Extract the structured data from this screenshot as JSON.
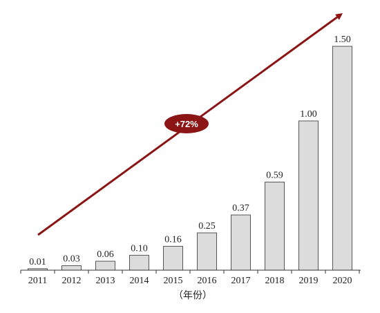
{
  "chart_data": {
    "type": "bar",
    "categories": [
      "2011",
      "2012",
      "2013",
      "2014",
      "2015",
      "2016",
      "2017",
      "2018",
      "2019",
      "2020"
    ],
    "values": [
      0.01,
      0.03,
      0.06,
      0.1,
      0.16,
      0.25,
      0.37,
      0.59,
      1.0,
      1.5
    ],
    "value_labels": [
      "0.01",
      "0.03",
      "0.06",
      "0.10",
      "0.16",
      "0.25",
      "0.37",
      "0.59",
      "1.00",
      "1.50"
    ],
    "xlabel": "（年份）",
    "ylabel": "",
    "ylim": [
      0,
      1.6
    ],
    "grid": false,
    "annotation": {
      "text": "+72%",
      "type": "growth-arrow"
    },
    "colors": {
      "bar_fill": "#dcdcdc",
      "bar_stroke": "#555555",
      "arrow": "#8b1414",
      "badge": "#8b1414"
    }
  }
}
